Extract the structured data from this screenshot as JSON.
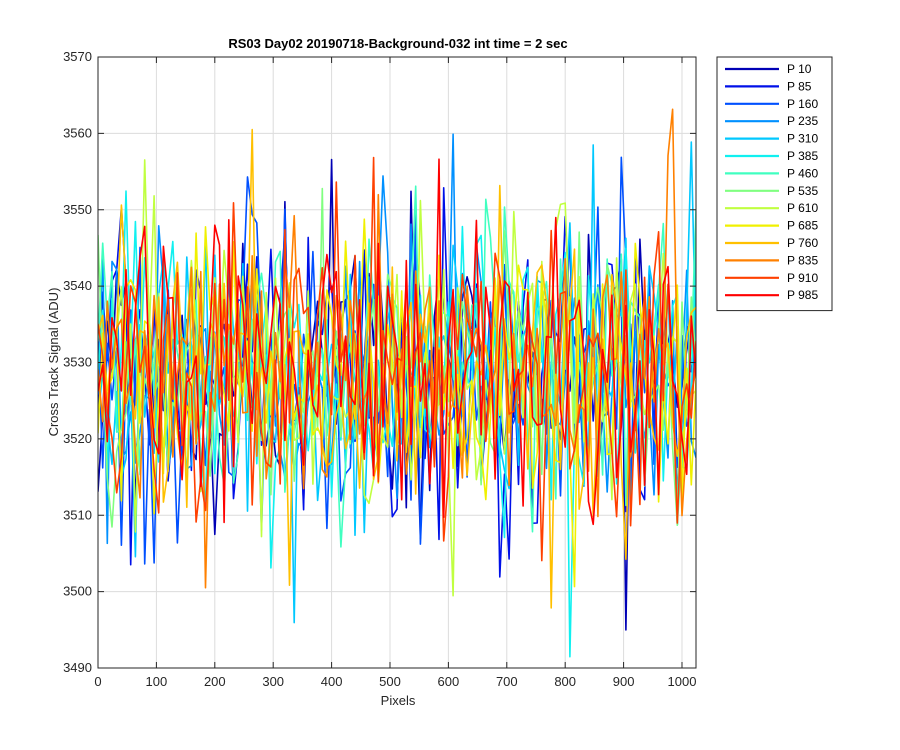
{
  "chart_data": {
    "type": "line",
    "title": "RS03 Day02 20190718-Background-032 int time = 2 sec",
    "xlabel": "Pixels",
    "ylabel": "Cross Track Signal (ADU)",
    "xlim": [
      0,
      1024
    ],
    "ylim": [
      3490,
      3570
    ],
    "x_ticks": [
      0,
      100,
      200,
      300,
      400,
      500,
      600,
      700,
      800,
      900,
      1000
    ],
    "y_ticks": [
      3490,
      3500,
      3510,
      3520,
      3530,
      3540,
      3550,
      3560,
      3570
    ],
    "grid": true,
    "legend_position": "outside-top-right",
    "approximate_mean": 3529,
    "approximate_range": [
      3491,
      3566
    ],
    "x_step": 8,
    "series": [
      {
        "name": "P 10",
        "color": "#0000b5"
      },
      {
        "name": "P 85",
        "color": "#0010e8"
      },
      {
        "name": "P 160",
        "color": "#0050ff"
      },
      {
        "name": "P 235",
        "color": "#0090ff"
      },
      {
        "name": "P 310",
        "color": "#00c8ff"
      },
      {
        "name": "P 385",
        "color": "#10f0f0"
      },
      {
        "name": "P 460",
        "color": "#40ffc0"
      },
      {
        "name": "P 535",
        "color": "#80ff80"
      },
      {
        "name": "P 610",
        "color": "#c0ff40"
      },
      {
        "name": "P 685",
        "color": "#f0f000"
      },
      {
        "name": "P 760",
        "color": "#ffc000"
      },
      {
        "name": "P 835",
        "color": "#ff8000"
      },
      {
        "name": "P 910",
        "color": "#ff4000"
      },
      {
        "name": "P 985",
        "color": "#ff0000"
      }
    ]
  }
}
